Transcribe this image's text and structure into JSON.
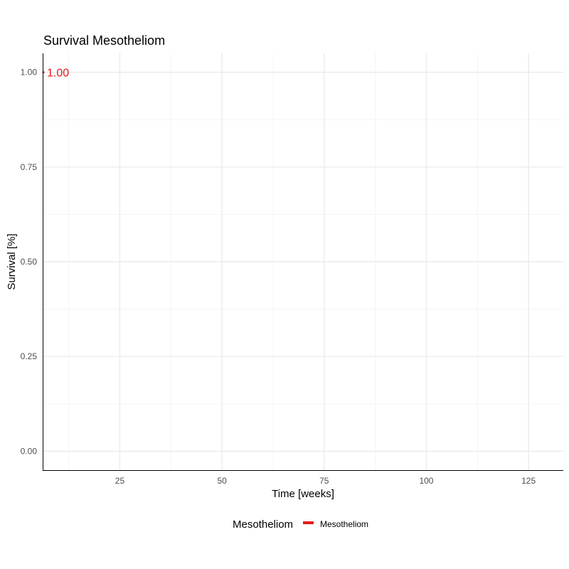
{
  "chart_data": {
    "type": "line",
    "title": "Survival Mesotheliom",
    "xlabel": "Time [weeks]",
    "ylabel": "Survival [%]",
    "xlim": [
      6.3,
      133.5
    ],
    "ylim": [
      -0.05,
      1.05
    ],
    "x_ticks": [
      25,
      50,
      75,
      100,
      125
    ],
    "x_tick_labels": [
      "25",
      "50",
      "75",
      "100",
      "125"
    ],
    "y_ticks": [
      0,
      0.25,
      0.5,
      0.75,
      1.0
    ],
    "y_tick_labels": [
      "0.00",
      "0.25",
      "0.50",
      "0.75",
      "1.00"
    ],
    "grid": true,
    "legend": {
      "title": "Mesotheliom",
      "position": "bottom",
      "entries": [
        {
          "label": "Mesotheliom",
          "color": "#e41a1c"
        }
      ]
    },
    "series": [
      {
        "name": "Mesotheliom",
        "color": "#e41a1c",
        "x": [
          6.3
        ],
        "y": [
          1.0
        ]
      }
    ],
    "annotations": [
      {
        "text": "1.00",
        "x": 6.3,
        "y": 1.0,
        "color": "#e41a1c"
      }
    ]
  }
}
